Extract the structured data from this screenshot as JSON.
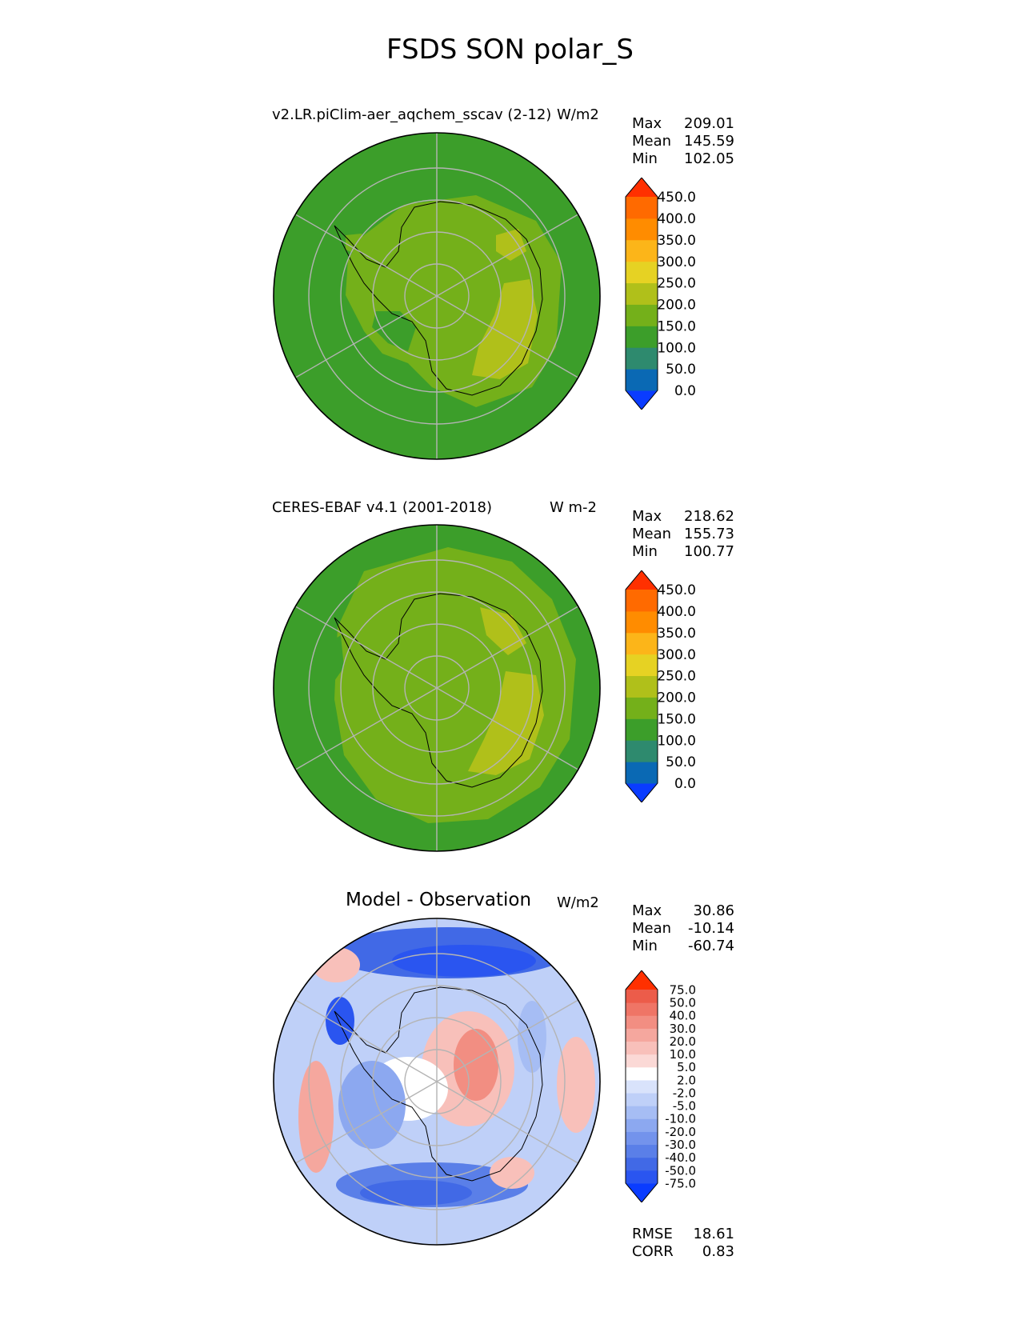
{
  "figure": {
    "title": "FSDS SON polar_S"
  },
  "panels": [
    {
      "id": "model",
      "title_left": "v2.LR.piClim-aer_aqchem_sscav (2-12)",
      "title_right": "W/m2",
      "stats": [
        {
          "label": "Max",
          "value": "209.01"
        },
        {
          "label": "Mean",
          "value": "145.59"
        },
        {
          "label": "Min",
          "value": "102.05"
        }
      ],
      "colorbar": {
        "colors": [
          "#0a3cff",
          "#0a69b4",
          "#2e8a6e",
          "#3c9e2a",
          "#74b01a",
          "#b0c01a",
          "#e6d223",
          "#fcb519",
          "#ff8c00",
          "#ff6a00",
          "#ff3000"
        ],
        "labels": [
          "0.0",
          "50.0",
          "100.0",
          "150.0",
          "200.0",
          "250.0",
          "300.0",
          "350.0",
          "400.0",
          "450.0"
        ]
      }
    },
    {
      "id": "obs",
      "title_left": "CERES-EBAF v4.1 (2001-2018)",
      "title_right": "W m-2",
      "stats": [
        {
          "label": "Max",
          "value": "218.62"
        },
        {
          "label": "Mean",
          "value": "155.73"
        },
        {
          "label": "Min",
          "value": "100.77"
        }
      ],
      "colorbar": {
        "colors": [
          "#0a3cff",
          "#0a69b4",
          "#2e8a6e",
          "#3c9e2a",
          "#74b01a",
          "#b0c01a",
          "#e6d223",
          "#fcb519",
          "#ff8c00",
          "#ff6a00",
          "#ff3000"
        ],
        "labels": [
          "0.0",
          "50.0",
          "100.0",
          "150.0",
          "200.0",
          "250.0",
          "300.0",
          "350.0",
          "400.0",
          "450.0"
        ]
      }
    },
    {
      "id": "diff",
      "title_center": "Model - Observation",
      "title_right": "W/m2",
      "stats": [
        {
          "label": "Max",
          "value": "30.86"
        },
        {
          "label": "Mean",
          "value": "-10.14"
        },
        {
          "label": "Min",
          "value": "-60.74"
        }
      ],
      "extra_stats": [
        {
          "label": "RMSE",
          "value": "18.61"
        },
        {
          "label": "CORR",
          "value": "0.83"
        }
      ],
      "colorbar": {
        "colors": [
          "#0a3cff",
          "#2a55f0",
          "#4169e6",
          "#5a7fe8",
          "#7393ec",
          "#8ca8f0",
          "#a6bdf4",
          "#bfd0f8",
          "#d9e3fb",
          "#ffffff",
          "#fbd9d6",
          "#f8c0ba",
          "#f5a79e",
          "#f28e82",
          "#ef7566",
          "#ec5c4a",
          "#ff3000"
        ],
        "labels": [
          "-75.0",
          "-50.0",
          "-40.0",
          "-30.0",
          "-20.0",
          "-10.0",
          "-5.0",
          "-2.0",
          "2.0",
          "5.0",
          "10.0",
          "20.0",
          "30.0",
          "40.0",
          "50.0",
          "75.0"
        ]
      }
    }
  ]
}
